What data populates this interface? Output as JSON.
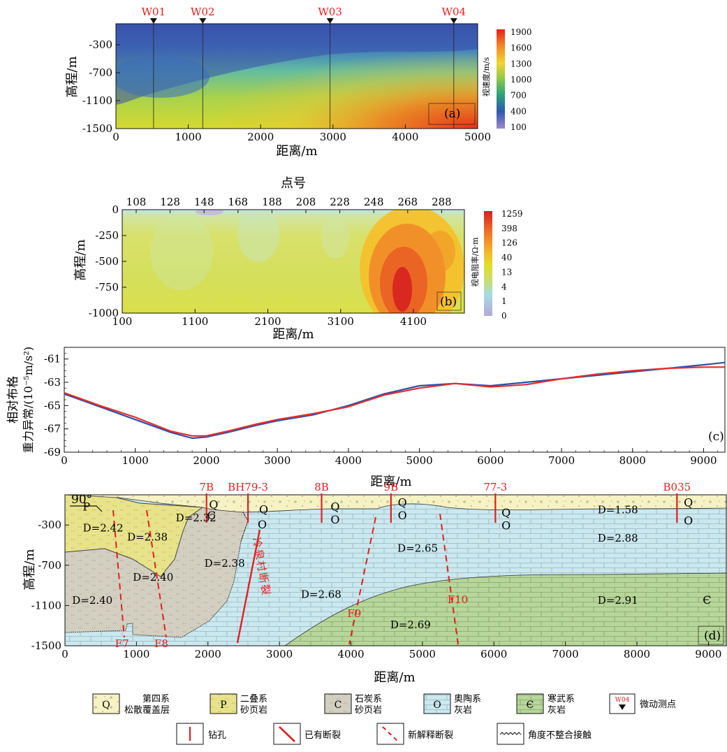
{
  "panel_a": {
    "ylabel": "高程/m",
    "xlabel": "距离/m",
    "label": "(a)",
    "colorbar_title": "视速度/m/s",
    "colorbar_ticks": [
      "1900",
      "1600",
      "1300",
      "1000",
      "700",
      "400",
      "100"
    ]
  },
  "panel_b": {
    "top_label": "点号",
    "ylabel": "高程/m",
    "xlabel": "距离/m",
    "label": "(b)",
    "colorbar_title": "视电阻率/Ω·m",
    "colorbar_ticks": [
      "1259",
      "398",
      "126",
      "40",
      "13",
      "4",
      "1",
      "0"
    ]
  },
  "panel_c": {
    "ylabel_line1": "相对布格",
    "ylabel_line2": "重力异常/(10⁻⁵m/s²)",
    "xlabel": "距离/m",
    "label": "(c)"
  },
  "panel_d": {
    "ylabel": "高程/m",
    "xlabel": "距离/m",
    "label": "(d)",
    "angle": "90°",
    "fault_name": "冷泉村断裂"
  },
  "legend": {
    "items": [
      {
        "key": "q",
        "symbol": "Q",
        "line1": "第四系",
        "line2": "松散覆盖层"
      },
      {
        "key": "p",
        "symbol": "P",
        "line1": "二叠系",
        "line2": "砂页岩"
      },
      {
        "key": "c",
        "symbol": "C",
        "line1": "石炭系",
        "line2": "砂页岩"
      },
      {
        "key": "o",
        "symbol": "O",
        "line1": "奥陶系",
        "line2": "灰岩"
      },
      {
        "key": "e",
        "symbol": "Є",
        "line1": "寒武系",
        "line2": "灰岩"
      },
      {
        "key": "w",
        "symbol": "W04",
        "line1": "微动测点",
        "line2": ""
      }
    ],
    "items2": [
      {
        "key": "drill",
        "label": "钻孔"
      },
      {
        "key": "fault_old",
        "label": "已有断裂"
      },
      {
        "key": "fault_new",
        "label": "新解释断裂"
      },
      {
        "key": "unconf",
        "label": "角度不整合接触"
      }
    ]
  },
  "chart_data": [
    {
      "id": "a",
      "type": "heatmap",
      "xlabel": "距离/m",
      "ylabel": "高程/m",
      "xlim": [
        0,
        5000
      ],
      "ylim": [
        -1500,
        0
      ],
      "xticks": [
        "0",
        "1000",
        "2000",
        "3000",
        "4000",
        "5000"
      ],
      "yticks": [
        "-300",
        "-700",
        "-1100",
        "-1500"
      ],
      "colorbar": {
        "title": "视速度/m/s",
        "range": [
          100,
          1900
        ]
      },
      "stations": [
        {
          "name": "W01",
          "x": 520
        },
        {
          "name": "W02",
          "x": 1200
        },
        {
          "name": "W03",
          "x": 2960
        },
        {
          "name": "W04",
          "x": 4670
        }
      ]
    },
    {
      "id": "b",
      "type": "heatmap",
      "xlabel": "距离/m",
      "ylabel": "高程/m",
      "top_label": "点号",
      "xlim": [
        100,
        4800
      ],
      "ylim": [
        -1000,
        0
      ],
      "xticks": [
        "100",
        "1100",
        "2100",
        "3100",
        "4100"
      ],
      "yticks": [
        "0",
        "-250",
        "-500",
        "-750",
        "-1000"
      ],
      "top_ticks": [
        "108",
        "128",
        "148",
        "168",
        "188",
        "208",
        "228",
        "248",
        "268",
        "288"
      ],
      "colorbar": {
        "title": "视电阻率/Ω·m",
        "range": [
          0,
          1259
        ]
      },
      "anomaly_center_x": 4100
    },
    {
      "id": "c",
      "type": "line",
      "xlabel": "距离/m",
      "ylabel": "相对布格重力异常/(10⁻⁵m/s²)",
      "xlim": [
        0,
        9300
      ],
      "ylim": [
        -69,
        -60
      ],
      "xticks": [
        "0",
        "1000",
        "2000",
        "3000",
        "4000",
        "5000",
        "6000",
        "7000",
        "8000",
        "9000"
      ],
      "yticks": [
        "-61",
        "-63",
        "-65",
        "-67",
        "-69"
      ],
      "series": [
        {
          "color": "#2e4fa8",
          "x": [
            0,
            500,
            1000,
            1500,
            1800,
            2000,
            2300,
            2700,
            3000,
            3500,
            4000,
            4500,
            5000,
            5500,
            6000,
            6500,
            7000,
            7500,
            8000,
            8500,
            9000,
            9300
          ],
          "values": [
            -64.0,
            -65.1,
            -66.2,
            -67.3,
            -67.8,
            -67.7,
            -67.3,
            -66.7,
            -66.3,
            -65.8,
            -65.0,
            -64.0,
            -63.3,
            -63.1,
            -63.3,
            -63.0,
            -62.7,
            -62.4,
            -62.1,
            -61.8,
            -61.5,
            -61.3
          ]
        },
        {
          "color": "#e03030",
          "x": [
            0,
            500,
            1000,
            1500,
            1800,
            2000,
            2300,
            2700,
            3000,
            3500,
            4000,
            4500,
            5000,
            5500,
            6000,
            6500,
            7000,
            7500,
            8000,
            8500,
            9000,
            9300
          ],
          "values": [
            -63.9,
            -65.0,
            -66.0,
            -67.2,
            -67.6,
            -67.6,
            -67.2,
            -66.6,
            -66.2,
            -65.7,
            -65.1,
            -64.1,
            -63.5,
            -63.1,
            -63.4,
            -63.2,
            -62.7,
            -62.3,
            -62.0,
            -61.8,
            -61.7,
            -61.7
          ]
        }
      ]
    },
    {
      "id": "d",
      "type": "table",
      "xlabel": "距离/m",
      "ylabel": "高程/m",
      "xlim": [
        0,
        9250
      ],
      "ylim": [
        -1500,
        0
      ],
      "xticks": [
        "0",
        "1000",
        "2000",
        "3000",
        "4000",
        "5000",
        "6000",
        "7000",
        "8000",
        "9000"
      ],
      "yticks": [
        "-300",
        "-700",
        "-1100",
        "-1500"
      ],
      "boreholes": [
        {
          "name": "7B",
          "x": 1980
        },
        {
          "name": "BH79-3",
          "x": 2560
        },
        {
          "name": "8B",
          "x": 3590
        },
        {
          "name": "9B",
          "x": 4560
        },
        {
          "name": "77-3",
          "x": 6020
        },
        {
          "name": "B035",
          "x": 8560
        }
      ],
      "strata_labels": [
        {
          "text": "P",
          "x": 300,
          "y": -120
        },
        {
          "text": "C",
          "x": 2050,
          "y": -210
        },
        {
          "text": "Q",
          "x": 2080,
          "y": -100
        },
        {
          "text": "Q",
          "x": 2780,
          "y": -150
        },
        {
          "text": "O",
          "x": 2760,
          "y": -300
        },
        {
          "text": "Q",
          "x": 3780,
          "y": -120
        },
        {
          "text": "O",
          "x": 3780,
          "y": -250
        },
        {
          "text": "Q",
          "x": 4720,
          "y": -80
        },
        {
          "text": "O",
          "x": 4720,
          "y": -210
        },
        {
          "text": "Q",
          "x": 6170,
          "y": -180
        },
        {
          "text": "O",
          "x": 6170,
          "y": -310
        },
        {
          "text": "Q",
          "x": 8720,
          "y": -80
        },
        {
          "text": "O",
          "x": 8720,
          "y": -260
        },
        {
          "text": "Є",
          "x": 8980,
          "y": -1050
        }
      ],
      "densities": [
        {
          "text": "D=2.42",
          "x": 250,
          "y": -330
        },
        {
          "text": "D=2.38",
          "x": 870,
          "y": -420
        },
        {
          "text": "D=2.32",
          "x": 1550,
          "y": -230
        },
        {
          "text": "D=2.40",
          "x": 950,
          "y": -820
        },
        {
          "text": "D=2.38",
          "x": 1950,
          "y": -680
        },
        {
          "text": "D=2.40",
          "x": 100,
          "y": -1050
        },
        {
          "text": "D=2.68",
          "x": 3300,
          "y": -990
        },
        {
          "text": "D=2.65",
          "x": 4650,
          "y": -530
        },
        {
          "text": "D=1.58",
          "x": 7450,
          "y": -150
        },
        {
          "text": "D=2.88",
          "x": 7450,
          "y": -430
        },
        {
          "text": "D=2.69",
          "x": 4550,
          "y": -1290
        },
        {
          "text": "D=2.91",
          "x": 7450,
          "y": -1050
        }
      ],
      "faults": [
        {
          "name": "F7",
          "x": 700,
          "y": -1480
        },
        {
          "name": "F8",
          "x": 1250,
          "y": -1480
        },
        {
          "name": "F9",
          "x": 3950,
          "y": -1180
        },
        {
          "name": "F10",
          "x": 5350,
          "y": -1040
        }
      ]
    }
  ],
  "colors": {
    "red": "#e02020",
    "blue_line": "#2e4fa8",
    "q_fill": "#f6f2c4",
    "p_fill": "#e8e38a",
    "c_fill": "#d2cfc0",
    "o_fill": "#cbe8ef",
    "e_fill": "#b7d69a"
  }
}
